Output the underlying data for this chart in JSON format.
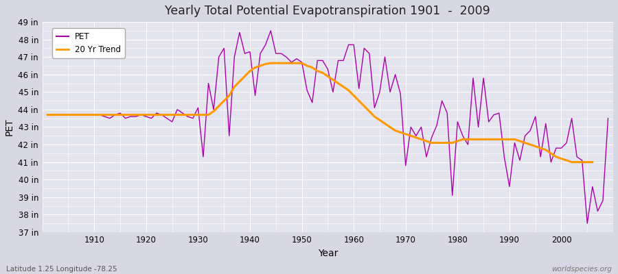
{
  "title": "Yearly Total Potential Evapotranspiration 1901  -  2009",
  "xlabel": "Year",
  "ylabel": "PET",
  "subtitle_left": "Latitude 1.25 Longitude -78.25",
  "subtitle_right": "worldspecies.org",
  "ylim": [
    37,
    49
  ],
  "ytick_labels": [
    "37 in",
    "38 in",
    "39 in",
    "40 in",
    "41 in",
    "42 in",
    "43 in",
    "44 in",
    "45 in",
    "46 in",
    "47 in",
    "48 in",
    "49 in"
  ],
  "ytick_values": [
    37,
    38,
    39,
    40,
    41,
    42,
    43,
    44,
    45,
    46,
    47,
    48,
    49
  ],
  "xtick_values": [
    1910,
    1920,
    1930,
    1940,
    1950,
    1960,
    1970,
    1980,
    1990,
    2000
  ],
  "pet_color": "#aa00aa",
  "trend_color": "#ff9900",
  "bg_color": "#dcdce8",
  "plot_bg_color": "#e4e4ee",
  "grid_color": "#ffffff",
  "fig_bg_color": "#d8d8e4",
  "years": [
    1901,
    1902,
    1903,
    1904,
    1905,
    1906,
    1907,
    1908,
    1909,
    1910,
    1911,
    1912,
    1913,
    1914,
    1915,
    1916,
    1917,
    1918,
    1919,
    1920,
    1921,
    1922,
    1923,
    1924,
    1925,
    1926,
    1927,
    1928,
    1929,
    1930,
    1931,
    1932,
    1933,
    1934,
    1935,
    1936,
    1937,
    1938,
    1939,
    1940,
    1941,
    1942,
    1943,
    1944,
    1945,
    1946,
    1947,
    1948,
    1949,
    1950,
    1951,
    1952,
    1953,
    1954,
    1955,
    1956,
    1957,
    1958,
    1959,
    1960,
    1961,
    1962,
    1963,
    1964,
    1965,
    1966,
    1967,
    1968,
    1969,
    1970,
    1971,
    1972,
    1973,
    1974,
    1975,
    1976,
    1977,
    1978,
    1979,
    1980,
    1981,
    1982,
    1983,
    1984,
    1985,
    1986,
    1987,
    1988,
    1989,
    1990,
    1991,
    1992,
    1993,
    1994,
    1995,
    1996,
    1997,
    1998,
    1999,
    2000,
    2001,
    2002,
    2003,
    2004,
    2005,
    2006,
    2007,
    2008,
    2009
  ],
  "pet_values": [
    43.7,
    43.7,
    43.7,
    43.7,
    43.7,
    43.7,
    43.7,
    43.7,
    43.7,
    43.7,
    43.7,
    43.6,
    43.5,
    43.7,
    43.8,
    43.5,
    43.6,
    43.6,
    43.7,
    43.6,
    43.5,
    43.8,
    43.7,
    43.5,
    43.3,
    44.0,
    43.8,
    43.6,
    43.5,
    44.1,
    41.3,
    45.5,
    44.0,
    47.0,
    47.5,
    42.5,
    47.0,
    48.4,
    47.2,
    47.3,
    44.8,
    47.2,
    47.7,
    48.5,
    47.2,
    47.2,
    47.0,
    46.7,
    46.9,
    46.7,
    45.1,
    44.4,
    46.8,
    46.8,
    46.3,
    45.0,
    46.8,
    46.8,
    47.7,
    47.7,
    45.2,
    47.5,
    47.2,
    44.1,
    45.0,
    47.0,
    45.0,
    46.0,
    44.9,
    40.8,
    43.0,
    42.5,
    43.0,
    41.3,
    42.4,
    43.1,
    44.5,
    43.8,
    39.1,
    43.3,
    42.5,
    42.0,
    45.8,
    43.0,
    45.8,
    43.3,
    43.7,
    43.8,
    41.3,
    39.6,
    42.1,
    41.1,
    42.5,
    42.8,
    43.6,
    41.3,
    43.2,
    41.0,
    41.8,
    41.8,
    42.1,
    43.5,
    41.3,
    41.1,
    37.5,
    39.6,
    38.2,
    38.8,
    43.5
  ],
  "trend_values": [
    43.7,
    43.7,
    43.7,
    43.7,
    43.7,
    43.7,
    43.7,
    43.7,
    43.7,
    43.7,
    43.7,
    43.7,
    43.7,
    43.7,
    43.7,
    43.7,
    43.7,
    43.7,
    43.7,
    43.7,
    43.7,
    43.7,
    43.7,
    43.7,
    43.7,
    43.7,
    43.7,
    43.7,
    43.7,
    43.7,
    43.7,
    43.7,
    43.9,
    44.2,
    44.5,
    44.8,
    45.3,
    45.6,
    45.9,
    46.2,
    46.4,
    46.5,
    46.6,
    46.65,
    46.65,
    46.65,
    46.65,
    46.65,
    46.65,
    46.65,
    46.5,
    46.4,
    46.2,
    46.1,
    45.9,
    45.7,
    45.5,
    45.3,
    45.1,
    44.8,
    44.5,
    44.2,
    43.9,
    43.6,
    43.4,
    43.2,
    43.0,
    42.8,
    42.7,
    42.6,
    42.5,
    42.4,
    42.3,
    42.2,
    42.1,
    42.1,
    42.1,
    42.1,
    42.1,
    42.2,
    42.3,
    42.3,
    42.3,
    42.3,
    42.3,
    42.3,
    42.3,
    42.3,
    42.3,
    42.3,
    42.3,
    42.2,
    42.1,
    42.0,
    41.9,
    41.8,
    41.7,
    41.5,
    41.3,
    41.2,
    41.1,
    41.0,
    41.0,
    41.0,
    41.0,
    41.0,
    null,
    null,
    null
  ]
}
